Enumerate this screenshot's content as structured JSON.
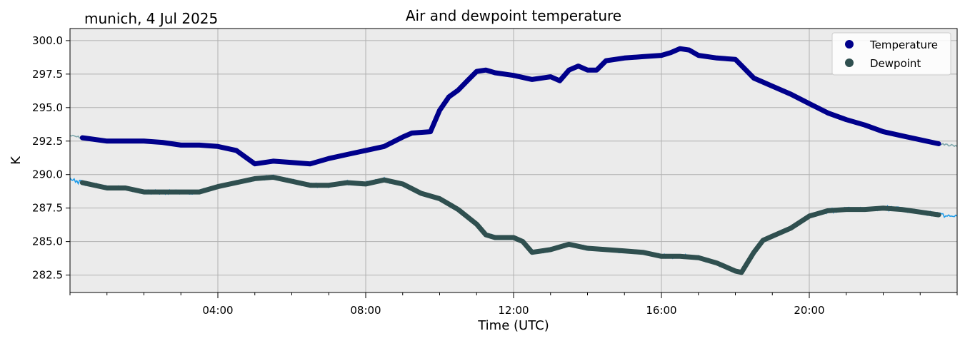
{
  "chart_data": {
    "type": "line",
    "title": "Air and dewpoint temperature",
    "subtitle": "munich, 4 Jul 2025",
    "xlabel": "Time (UTC)",
    "ylabel": "K",
    "xlim": [
      "00:00",
      "24:00"
    ],
    "ylim": [
      281.2,
      300.9
    ],
    "x_ticks": [
      "04:00",
      "08:00",
      "12:00",
      "16:00",
      "20:00"
    ],
    "y_ticks": [
      "282.5",
      "285.0",
      "287.5",
      "290.0",
      "292.5",
      "295.0",
      "297.5",
      "300.0"
    ],
    "grid": true,
    "legend_position": "top-right",
    "series": [
      {
        "name": "Temperature",
        "color": "#00008b",
        "raw_color": "#7fa8ad",
        "x": [
          "00:00",
          "00:20",
          "01:00",
          "02:00",
          "02:30",
          "03:00",
          "03:30",
          "04:00",
          "04:30",
          "04:45",
          "05:00",
          "05:15",
          "05:30",
          "06:00",
          "06:30",
          "07:00",
          "07:30",
          "08:00",
          "08:30",
          "09:00",
          "09:15",
          "09:45",
          "10:00",
          "10:15",
          "10:30",
          "10:45",
          "11:00",
          "11:15",
          "11:30",
          "12:00",
          "12:30",
          "13:00",
          "13:15",
          "13:30",
          "13:45",
          "14:00",
          "14:15",
          "14:30",
          "15:00",
          "15:30",
          "16:00",
          "16:15",
          "16:30",
          "16:45",
          "17:00",
          "17:30",
          "18:00",
          "18:30",
          "19:00",
          "19:30",
          "20:00",
          "20:30",
          "21:00",
          "21:30",
          "22:00",
          "22:30",
          "23:00",
          "23:30",
          "24:00"
        ],
        "values": [
          292.9,
          292.75,
          292.5,
          292.5,
          292.4,
          292.2,
          292.2,
          292.1,
          291.8,
          291.3,
          290.8,
          290.9,
          291.0,
          290.9,
          290.8,
          291.2,
          291.5,
          291.8,
          292.1,
          292.8,
          293.1,
          293.2,
          294.8,
          295.8,
          296.3,
          297.0,
          297.7,
          297.8,
          297.6,
          297.4,
          297.1,
          297.3,
          297.0,
          297.8,
          298.1,
          297.8,
          297.8,
          298.5,
          298.7,
          298.8,
          298.9,
          299.1,
          299.4,
          299.3,
          298.9,
          298.7,
          298.6,
          297.2,
          296.6,
          296.0,
          295.3,
          294.6,
          294.1,
          293.7,
          293.2,
          292.9,
          292.6,
          292.3,
          292.1
        ]
      },
      {
        "name": "Dewpoint",
        "color": "#2f4f4f",
        "raw_color": "#1e9cea",
        "x": [
          "00:00",
          "00:20",
          "01:00",
          "01:30",
          "02:00",
          "02:30",
          "03:00",
          "03:30",
          "04:00",
          "04:30",
          "05:00",
          "05:30",
          "06:00",
          "06:30",
          "07:00",
          "07:30",
          "08:00",
          "08:30",
          "09:00",
          "09:30",
          "10:00",
          "10:30",
          "11:00",
          "11:15",
          "11:30",
          "12:00",
          "12:15",
          "12:30",
          "13:00",
          "13:30",
          "14:00",
          "14:30",
          "15:00",
          "15:30",
          "16:00",
          "16:30",
          "17:00",
          "17:30",
          "18:00",
          "18:10",
          "18:30",
          "18:45",
          "19:00",
          "19:30",
          "20:00",
          "20:30",
          "21:00",
          "21:30",
          "22:00",
          "22:30",
          "23:00",
          "23:30",
          "24:00"
        ],
        "values": [
          289.6,
          289.4,
          289.0,
          289.0,
          288.7,
          288.7,
          288.7,
          288.7,
          289.1,
          289.4,
          289.7,
          289.8,
          289.5,
          289.2,
          289.2,
          289.4,
          289.3,
          289.6,
          289.3,
          288.6,
          288.2,
          287.4,
          286.3,
          285.5,
          285.3,
          285.3,
          285.0,
          284.2,
          284.4,
          284.8,
          284.5,
          284.4,
          284.3,
          284.2,
          283.9,
          283.9,
          283.8,
          283.4,
          282.8,
          282.7,
          284.2,
          285.1,
          285.4,
          286.0,
          286.9,
          287.3,
          287.4,
          287.4,
          287.5,
          287.4,
          287.2,
          287.0,
          286.9
        ]
      }
    ]
  }
}
